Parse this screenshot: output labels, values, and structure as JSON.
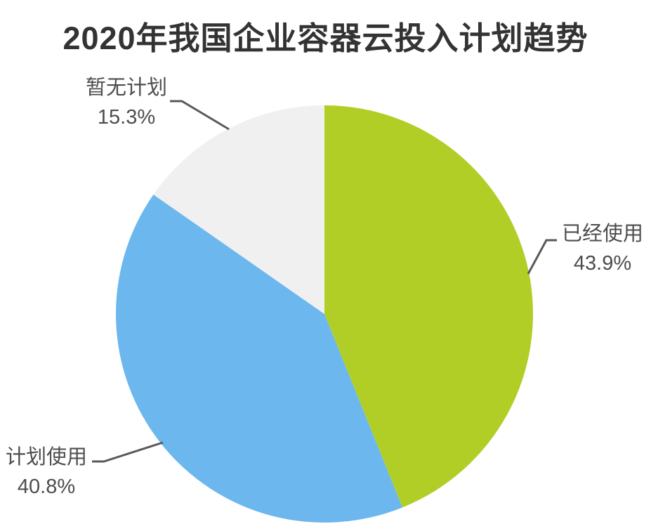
{
  "page": {
    "background": "#ffffff"
  },
  "chart_data": {
    "type": "pie",
    "title": "2020年我国企业容器云投入计划趋势",
    "start_angle_deg": 0,
    "direction": "clockwise",
    "legend_position": "none",
    "labels_outside": true,
    "slices": [
      {
        "label": "已经使用",
        "value": 43.9,
        "display": "43.9%",
        "color": "#b1ce27"
      },
      {
        "label": "计划使用",
        "value": 40.8,
        "display": "40.8%",
        "color": "#6db7ef"
      },
      {
        "label": "暂无计划",
        "value": 15.3,
        "display": "15.3%",
        "color": "#f0f0f0"
      }
    ]
  },
  "styles": {
    "title_color": "#333333",
    "label_color": "#4d4d4d",
    "leader_line_color": "#595959"
  }
}
